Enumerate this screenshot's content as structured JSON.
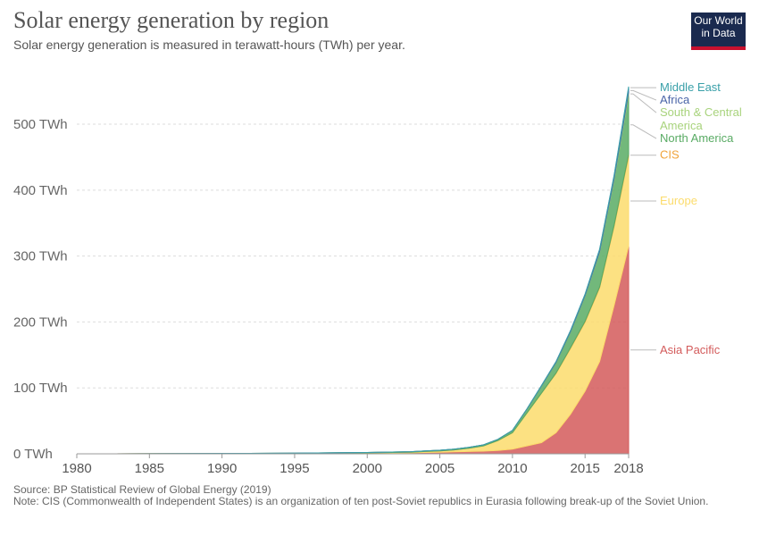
{
  "header": {
    "title": "Solar energy generation by region",
    "subtitle": "Solar energy generation is measured in terawatt-hours (TWh) per year.",
    "logo_line1": "Our World",
    "logo_line2": "in Data"
  },
  "footer": {
    "source": "Source: BP Statistical Review of Global Energy (2019)",
    "note": "Note: CIS (Commonwealth of Independent States) is an organization of ten post-Soviet republics in Eurasia following break-up of the Soviet Union."
  },
  "colors": {
    "asia_pacific": "#d35b5b",
    "europe": "#fcdc6c",
    "cis": "#f0a33a",
    "north_america": "#59ab64",
    "south_central_america": "#a8d37c",
    "africa": "#4a65a8",
    "middle_east": "#3aa0a9",
    "grid": "#dddddd"
  },
  "chart_data": {
    "type": "area",
    "stacked": true,
    "x": [
      1980,
      1985,
      1990,
      1995,
      2000,
      2003,
      2004,
      2005,
      2006,
      2007,
      2008,
      2009,
      2010,
      2011,
      2012,
      2013,
      2014,
      2015,
      2016,
      2017,
      2018
    ],
    "series": [
      {
        "name": "Asia Pacific",
        "values": [
          0,
          0.1,
          0.2,
          0.4,
          1.0,
          1.5,
          2.0,
          2.5,
          3.0,
          3.5,
          4.0,
          5.0,
          7.0,
          12.0,
          17.0,
          32.0,
          60.0,
          95.0,
          140.0,
          225.0,
          315.0
        ]
      },
      {
        "name": "Europe",
        "values": [
          0,
          0,
          0.1,
          0.2,
          0.5,
          1.0,
          1.5,
          2.0,
          3.0,
          5.0,
          8.0,
          15.0,
          25.0,
          50.0,
          75.0,
          90.0,
          100.0,
          105.0,
          112.0,
          120.0,
          137.0
        ]
      },
      {
        "name": "CIS",
        "values": [
          0,
          0,
          0,
          0,
          0,
          0,
          0,
          0,
          0,
          0,
          0,
          0,
          0,
          0,
          0,
          0.5,
          0.8,
          1.0,
          1.2,
          1.5,
          2.0
        ]
      },
      {
        "name": "North America",
        "values": [
          0,
          0.1,
          0.3,
          0.4,
          0.6,
          0.7,
          0.8,
          0.9,
          1.0,
          1.2,
          1.5,
          2.0,
          3.5,
          6.0,
          11.0,
          16.0,
          24.0,
          38.0,
          52.0,
          68.0,
          90.0
        ]
      },
      {
        "name": "South & Central America",
        "values": [
          0,
          0,
          0,
          0,
          0,
          0,
          0,
          0,
          0,
          0,
          0,
          0,
          0,
          0,
          0,
          0.2,
          0.4,
          0.8,
          1.5,
          2.5,
          4.0
        ]
      },
      {
        "name": "Africa",
        "values": [
          0,
          0,
          0,
          0,
          0,
          0,
          0,
          0,
          0,
          0,
          0,
          0,
          0,
          0.3,
          0.6,
          1.0,
          1.5,
          2.0,
          3.0,
          4.0,
          6.0
        ]
      },
      {
        "name": "Middle East",
        "values": [
          0,
          0,
          0,
          0,
          0,
          0,
          0,
          0,
          0,
          0,
          0,
          0,
          0,
          0,
          0.1,
          0.2,
          0.3,
          0.5,
          0.8,
          1.5,
          3.0
        ]
      }
    ],
    "xlim": [
      1980,
      2018
    ],
    "ylim": [
      0,
      580
    ],
    "x_ticks": [
      1980,
      1985,
      1990,
      1995,
      2000,
      2005,
      2010,
      2015,
      2018
    ],
    "y_ticks": [
      {
        "value": 0,
        "label": "0 TWh"
      },
      {
        "value": 100,
        "label": "100 TWh"
      },
      {
        "value": 200,
        "label": "200 TWh"
      },
      {
        "value": 300,
        "label": "300 TWh"
      },
      {
        "value": 400,
        "label": "400 TWh"
      },
      {
        "value": 500,
        "label": "500 TWh"
      }
    ],
    "grid": true,
    "legend_placement": "right, labels at series end",
    "legend": [
      {
        "lines": [
          "Middle East"
        ],
        "series": "Middle East"
      },
      {
        "lines": [
          "Africa"
        ],
        "series": "Africa"
      },
      {
        "lines": [
          "South & Central",
          "America"
        ],
        "series": "South & Central America"
      },
      {
        "lines": [
          "North America"
        ],
        "series": "North America"
      },
      {
        "lines": [
          "CIS"
        ],
        "series": "CIS"
      },
      {
        "lines": [
          "Europe"
        ],
        "series": "Europe"
      },
      {
        "lines": [
          "Asia Pacific"
        ],
        "series": "Asia Pacific"
      }
    ]
  }
}
